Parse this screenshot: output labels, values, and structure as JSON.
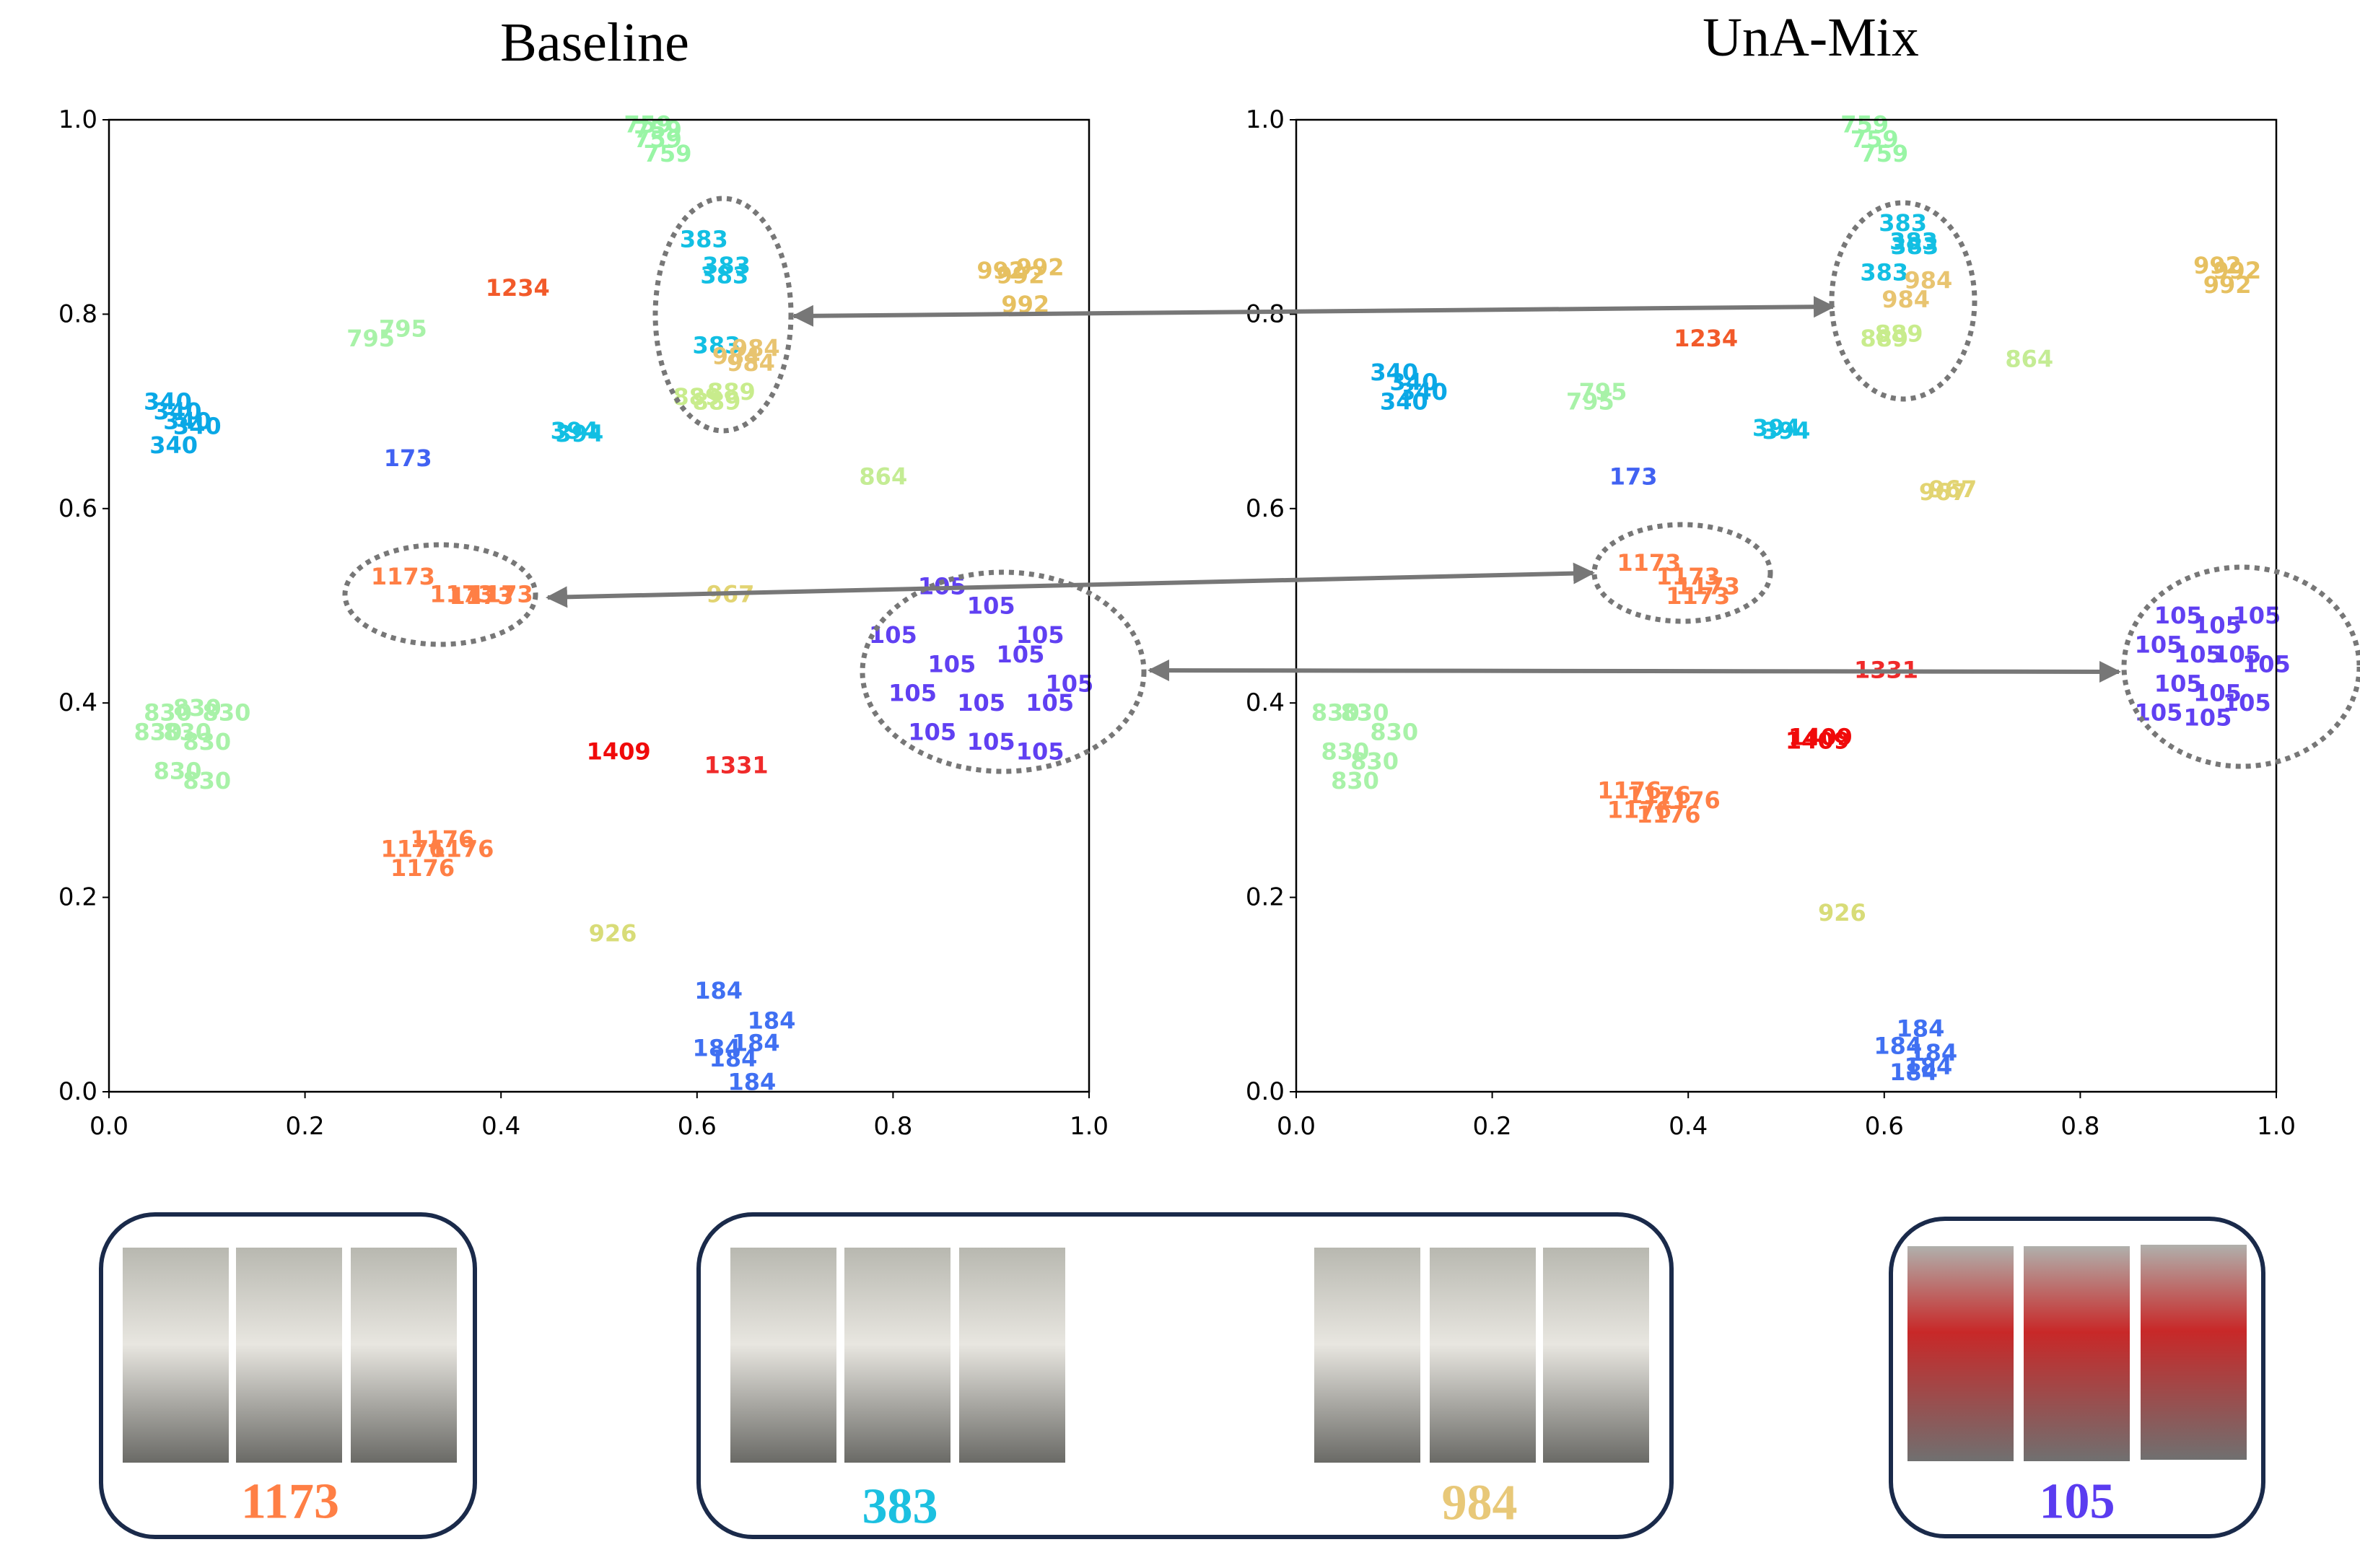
{
  "chart_data": [
    {
      "type": "scatter",
      "title": "Baseline",
      "xlim": [
        0,
        1
      ],
      "ylim": [
        0,
        1
      ],
      "xticks": [
        {
          "value": 0,
          "label": "0.0"
        },
        0.2,
        0.4,
        0.6,
        0.8,
        {
          "value": 1,
          "label": "1.0"
        }
      ],
      "yticks": [
        {
          "value": 0,
          "label": "0.0"
        },
        0.2,
        0.4,
        0.6,
        0.8,
        {
          "value": 1,
          "label": "1.0"
        }
      ],
      "series": [
        {
          "name": "759",
          "color": "#99f5a5",
          "x": [
            0.55,
            0.56,
            0.57,
            0.56
          ],
          "y": [
            0.995,
            0.98,
            0.965,
            0.99
          ]
        },
        {
          "name": "383",
          "color": "#12bfe3",
          "x": [
            0.607,
            0.63,
            0.628,
            0.62
          ],
          "y": [
            0.877,
            0.85,
            0.84,
            0.768
          ]
        },
        {
          "name": "1234",
          "color": "#f25a2a",
          "x": [
            0.417
          ],
          "y": [
            0.827
          ]
        },
        {
          "name": "992",
          "color": "#e6c060",
          "x": [
            0.91,
            0.93,
            0.95,
            0.935
          ],
          "y": [
            0.845,
            0.84,
            0.848,
            0.81
          ]
        },
        {
          "name": "795",
          "color": "#a8f2a8",
          "x": [
            0.267,
            0.3
          ],
          "y": [
            0.775,
            0.785
          ]
        },
        {
          "name": "984",
          "color": "#e8c470",
          "x": [
            0.64,
            0.655,
            0.66
          ],
          "y": [
            0.757,
            0.75,
            0.765
          ]
        },
        {
          "name": "889",
          "color": "#c8ec8c",
          "x": [
            0.6,
            0.62,
            0.635
          ],
          "y": [
            0.715,
            0.71,
            0.72
          ]
        },
        {
          "name": "340",
          "color": "#0aa8e6",
          "x": [
            0.06,
            0.07,
            0.08,
            0.09,
            0.066
          ],
          "y": [
            0.71,
            0.7,
            0.69,
            0.685,
            0.665
          ]
        },
        {
          "name": "394",
          "color": "#12bfe3",
          "x": [
            0.475,
            0.48
          ],
          "y": [
            0.68,
            0.677
          ]
        },
        {
          "name": "173",
          "color": "#4162f2",
          "x": [
            0.305
          ],
          "y": [
            0.652
          ]
        },
        {
          "name": "864",
          "color": "#c4ec94",
          "x": [
            0.79
          ],
          "y": [
            0.633
          ]
        },
        {
          "name": "1173",
          "color": "#ff7f45",
          "x": [
            0.3,
            0.36,
            0.38,
            0.4
          ],
          "y": [
            0.53,
            0.512,
            0.51,
            0.512
          ]
        },
        {
          "name": "967",
          "color": "#e2d472",
          "x": [
            0.634
          ],
          "y": [
            0.512
          ]
        },
        {
          "name": "105",
          "color": "#6040f2",
          "x": [
            0.85,
            0.9,
            0.95,
            0.8,
            0.86,
            0.93,
            0.98,
            0.82,
            0.89,
            0.96,
            0.84,
            0.9,
            0.95
          ],
          "y": [
            0.52,
            0.5,
            0.47,
            0.47,
            0.44,
            0.45,
            0.42,
            0.41,
            0.4,
            0.4,
            0.37,
            0.36,
            0.35
          ]
        },
        {
          "name": "830",
          "color": "#a8f2a8",
          "x": [
            0.06,
            0.09,
            0.12,
            0.05,
            0.08,
            0.1,
            0.07,
            0.1
          ],
          "y": [
            0.39,
            0.395,
            0.39,
            0.37,
            0.37,
            0.36,
            0.33,
            0.32
          ]
        },
        {
          "name": "1409",
          "color": "#f00a0a",
          "x": [
            0.52
          ],
          "y": [
            0.35
          ]
        },
        {
          "name": "1331",
          "color": "#f02a2a",
          "x": [
            0.64
          ],
          "y": [
            0.336
          ]
        },
        {
          "name": "1176",
          "color": "#ff7f45",
          "x": [
            0.31,
            0.34,
            0.36,
            0.32
          ],
          "y": [
            0.25,
            0.26,
            0.25,
            0.23
          ]
        },
        {
          "name": "926",
          "color": "#d8dc78",
          "x": [
            0.514
          ],
          "y": [
            0.163
          ]
        },
        {
          "name": "184",
          "color": "#4070f2",
          "x": [
            0.622,
            0.676,
            0.637,
            0.656,
            0.62,
            0.66
          ],
          "y": [
            0.104,
            0.073,
            0.034,
            0.01,
            0.045,
            0.05
          ]
        }
      ]
    },
    {
      "type": "scatter",
      "title": "UnA-Mix",
      "xlim": [
        0,
        1
      ],
      "ylim": [
        0,
        1
      ],
      "xticks": [
        {
          "value": 0,
          "label": "0.0"
        },
        0.2,
        0.4,
        0.6,
        0.8,
        {
          "value": 1,
          "label": "1.0"
        }
      ],
      "yticks": [
        {
          "value": 0,
          "label": "0.0"
        },
        0.2,
        0.4,
        0.6,
        0.8,
        {
          "value": 1,
          "label": "1.0"
        }
      ],
      "series": [
        {
          "name": "759",
          "color": "#99f5a5",
          "x": [
            0.58,
            0.59,
            0.6
          ],
          "y": [
            0.995,
            0.98,
            0.965
          ]
        },
        {
          "name": "383",
          "color": "#12bfe3",
          "x": [
            0.619,
            0.631,
            0.6,
            0.63
          ],
          "y": [
            0.894,
            0.87,
            0.843,
            0.875
          ]
        },
        {
          "name": "984",
          "color": "#e8c470",
          "x": [
            0.645,
            0.622
          ],
          "y": [
            0.835,
            0.815
          ]
        },
        {
          "name": "992",
          "color": "#e6c060",
          "x": [
            0.94,
            0.96,
            0.95
          ],
          "y": [
            0.85,
            0.845,
            0.83
          ]
        },
        {
          "name": "1234",
          "color": "#f25a2a",
          "x": [
            0.418
          ],
          "y": [
            0.775
          ]
        },
        {
          "name": "889",
          "color": "#c8ec8c",
          "x": [
            0.6,
            0.615
          ],
          "y": [
            0.775,
            0.78
          ]
        },
        {
          "name": "864",
          "color": "#c4ec94",
          "x": [
            0.748
          ],
          "y": [
            0.754
          ]
        },
        {
          "name": "340",
          "color": "#0aa8e6",
          "x": [
            0.1,
            0.12,
            0.13,
            0.11
          ],
          "y": [
            0.74,
            0.73,
            0.72,
            0.71
          ]
        },
        {
          "name": "795",
          "color": "#a8f2a8",
          "x": [
            0.3,
            0.313
          ],
          "y": [
            0.71,
            0.72
          ]
        },
        {
          "name": "394",
          "color": "#12bfe3",
          "x": [
            0.49,
            0.5
          ],
          "y": [
            0.683,
            0.68
          ]
        },
        {
          "name": "173",
          "color": "#4162f2",
          "x": [
            0.344
          ],
          "y": [
            0.633
          ]
        },
        {
          "name": "967",
          "color": "#e2d472",
          "x": [
            0.66,
            0.67
          ],
          "y": [
            0.617,
            0.62
          ]
        },
        {
          "name": "1173",
          "color": "#ff7f45",
          "x": [
            0.36,
            0.4,
            0.42,
            0.41
          ],
          "y": [
            0.544,
            0.53,
            0.52,
            0.51
          ]
        },
        {
          "name": "105",
          "color": "#6040f2",
          "x": [
            0.9,
            0.94,
            0.98,
            0.88,
            0.92,
            0.96,
            0.99,
            0.9,
            0.94,
            0.97,
            0.88,
            0.93
          ],
          "y": [
            0.49,
            0.48,
            0.49,
            0.46,
            0.45,
            0.45,
            0.44,
            0.42,
            0.41,
            0.4,
            0.39,
            0.385
          ]
        },
        {
          "name": "1331",
          "color": "#f02a2a",
          "x": [
            0.602
          ],
          "y": [
            0.434
          ]
        },
        {
          "name": "1409",
          "color": "#f00a0a",
          "x": [
            0.532,
            0.535
          ],
          "y": [
            0.361,
            0.365
          ]
        },
        {
          "name": "830",
          "color": "#a8f2a8",
          "x": [
            0.04,
            0.07,
            0.1,
            0.05,
            0.08,
            0.06
          ],
          "y": [
            0.39,
            0.39,
            0.37,
            0.35,
            0.34,
            0.32
          ]
        },
        {
          "name": "1176",
          "color": "#ff7f45",
          "x": [
            0.34,
            0.37,
            0.4,
            0.35,
            0.38
          ],
          "y": [
            0.31,
            0.305,
            0.3,
            0.29,
            0.285
          ]
        },
        {
          "name": "926",
          "color": "#d8dc78",
          "x": [
            0.557
          ],
          "y": [
            0.184
          ]
        },
        {
          "name": "184",
          "color": "#4070f2",
          "x": [
            0.637,
            0.614,
            0.645,
            0.65,
            0.63
          ],
          "y": [
            0.065,
            0.047,
            0.026,
            0.04,
            0.02
          ]
        }
      ]
    }
  ],
  "panels": [
    {
      "ids": [
        {
          "text": "1173",
          "color": "#ff7f45"
        }
      ]
    },
    {
      "ids": [
        {
          "text": "383",
          "color": "#1cc0e0"
        },
        {
          "text": "984",
          "color": "#e8c878"
        }
      ]
    },
    {
      "ids": [
        {
          "text": "105",
          "color": "#5a3cf0"
        }
      ]
    }
  ]
}
